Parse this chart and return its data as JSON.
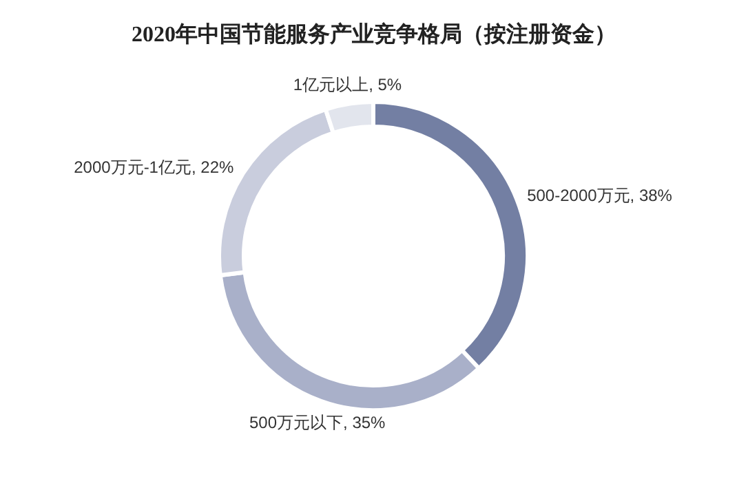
{
  "chart_data": {
    "type": "donut",
    "title": "2020年中国节能服务产业竞争格局（按注册资金）",
    "categories": [
      "500-2000万元",
      "500万元以下",
      "2000万元-1亿元",
      "1亿元以上"
    ],
    "values": [
      38,
      35,
      22,
      5
    ],
    "value_labels": [
      ", 38%",
      ", 35%",
      ", 22%",
      ", 5%"
    ],
    "colors": [
      "#737fa3",
      "#a9b0c9",
      "#c9cddd",
      "#e2e5ed"
    ]
  }
}
